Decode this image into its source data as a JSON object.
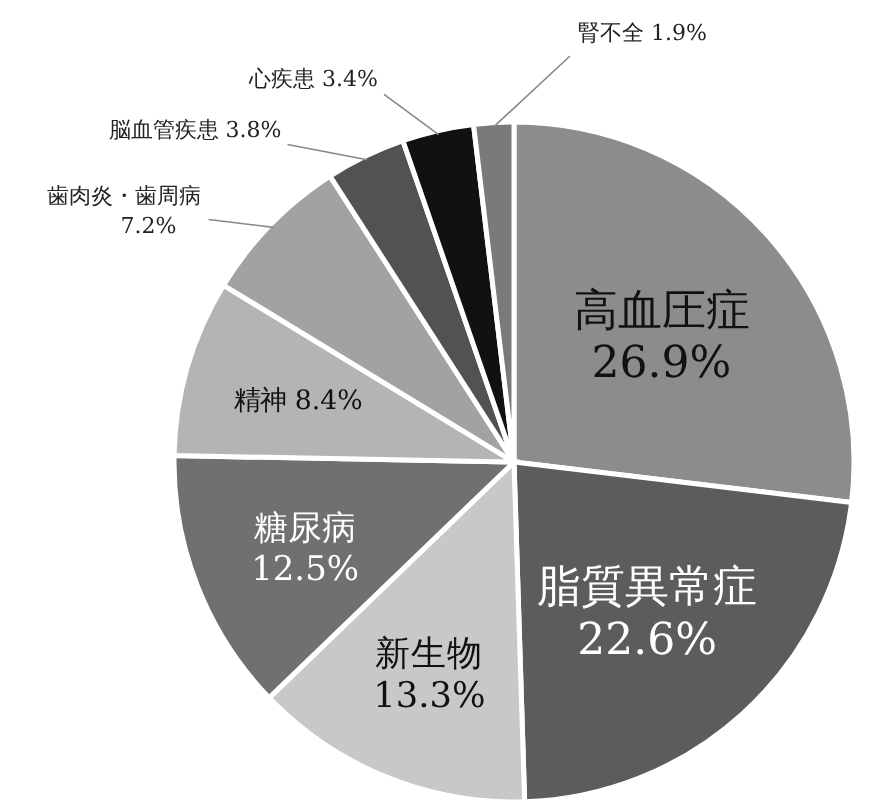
{
  "chart_data": {
    "type": "pie",
    "categories": [
      "高血圧症",
      "脂質異常症",
      "新生物",
      "糖尿病",
      "精神",
      "歯肉炎・歯周病",
      "脳血管疾患",
      "心疾患",
      "腎不全"
    ],
    "values": [
      26.9,
      22.6,
      13.3,
      12.5,
      8.4,
      7.2,
      3.8,
      3.4,
      1.9
    ],
    "value_labels": [
      "26.9%",
      "22.6%",
      "13.3%",
      "12.5%",
      "8.4%",
      "7.2%",
      "3.8%",
      "3.4%",
      "1.9%"
    ],
    "colors": [
      "#8c8c8c",
      "#5c5c5c",
      "#c8c8c8",
      "#707070",
      "#b4b4b4",
      "#a2a2a2",
      "#525252",
      "#111111",
      "#7a7a7a"
    ]
  }
}
